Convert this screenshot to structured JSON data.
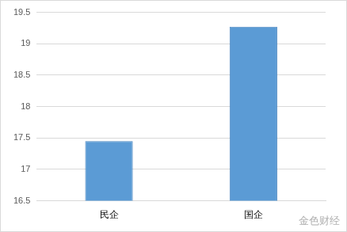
{
  "chart_data": {
    "type": "bar",
    "categories": [
      "民企",
      "国企"
    ],
    "values": [
      17.45,
      19.27
    ],
    "color": "#5b9bd5",
    "ylim": [
      16.5,
      19.5
    ],
    "yticks": [
      16.5,
      17,
      17.5,
      18,
      18.5,
      19,
      19.5
    ],
    "grid": true,
    "annotations": [
      "金色财经"
    ]
  }
}
